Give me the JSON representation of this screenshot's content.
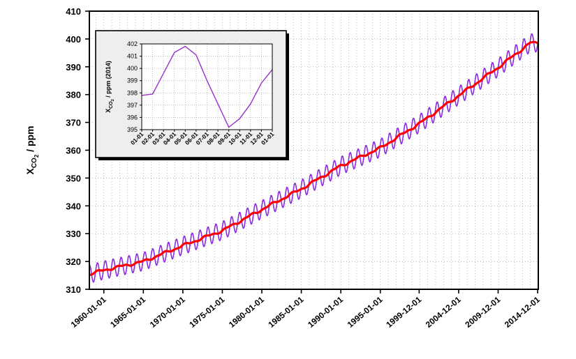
{
  "chart_data": [
    {
      "type": "line",
      "ylabel_main": "X",
      "ylabel_sub": "CO",
      "ylabel_subsub": "2",
      "ylabel_unit": " / ppm",
      "ylim": [
        310,
        410
      ],
      "yticks": [
        310,
        320,
        330,
        340,
        350,
        360,
        370,
        380,
        390,
        400,
        410
      ],
      "xlim": [
        "1958-03-01",
        "2015-01-01"
      ],
      "xtick_labels": [
        "1960-01-01",
        "1965-01-01",
        "1970-01-01",
        "1975-01-01",
        "1980-01-01",
        "1985-01-01",
        "1990-01-01",
        "1995-01-01",
        "1999-12-01",
        "2004-12-01",
        "2009-12-01",
        "2014-12-01"
      ],
      "grid": true,
      "series": [
        {
          "color": "#8a2be2",
          "description_key": "monthly",
          "annual_means": [
            {
              "year": 1958,
              "value": 315.3
            },
            {
              "year": 1960,
              "value": 316.9
            },
            {
              "year": 1965,
              "value": 320.0
            },
            {
              "year": 1970,
              "value": 325.7
            },
            {
              "year": 1975,
              "value": 331.1
            },
            {
              "year": 1980,
              "value": 338.7
            },
            {
              "year": 1985,
              "value": 346.1
            },
            {
              "year": 1990,
              "value": 354.4
            },
            {
              "year": 1995,
              "value": 360.8
            },
            {
              "year": 2000,
              "value": 369.7
            },
            {
              "year": 2005,
              "value": 379.8
            },
            {
              "year": 2010,
              "value": 389.9
            },
            {
              "year": 2014,
              "value": 398.6
            }
          ],
          "seasonal_amplitude": 3.3
        },
        {
          "color": "#ff0000",
          "description_key": "trend",
          "annual_means": [
            {
              "year": 1958,
              "value": 315.3
            },
            {
              "year": 1960,
              "value": 316.9
            },
            {
              "year": 1965,
              "value": 320.0
            },
            {
              "year": 1970,
              "value": 325.7
            },
            {
              "year": 1975,
              "value": 331.1
            },
            {
              "year": 1980,
              "value": 338.7
            },
            {
              "year": 1985,
              "value": 346.1
            },
            {
              "year": 1990,
              "value": 354.4
            },
            {
              "year": 1995,
              "value": 360.8
            },
            {
              "year": 2000,
              "value": 369.7
            },
            {
              "year": 2005,
              "value": 379.8
            },
            {
              "year": 2010,
              "value": 389.9
            },
            {
              "year": 2014,
              "value": 398.6
            }
          ]
        }
      ]
    },
    {
      "type": "line",
      "ylabel_main": "X",
      "ylabel_sub": "CO",
      "ylabel_subsub": "2",
      "ylabel_unit": " / ppm (2014)",
      "ylim": [
        395,
        402
      ],
      "yticks": [
        395,
        396,
        397,
        398,
        399,
        400,
        401,
        402
      ],
      "categories": [
        "01-01",
        "02-01",
        "03-01",
        "04-01",
        "05-01",
        "06-01",
        "07-01",
        "08-01",
        "09-01",
        "10-01",
        "11-01",
        "12-01",
        "01-01"
      ],
      "values": [
        397.8,
        397.9,
        399.6,
        401.3,
        401.8,
        401.1,
        399.0,
        397.1,
        395.2,
        395.9,
        397.1,
        398.8,
        399.9
      ],
      "color": "#9932cc",
      "grid": true
    }
  ]
}
